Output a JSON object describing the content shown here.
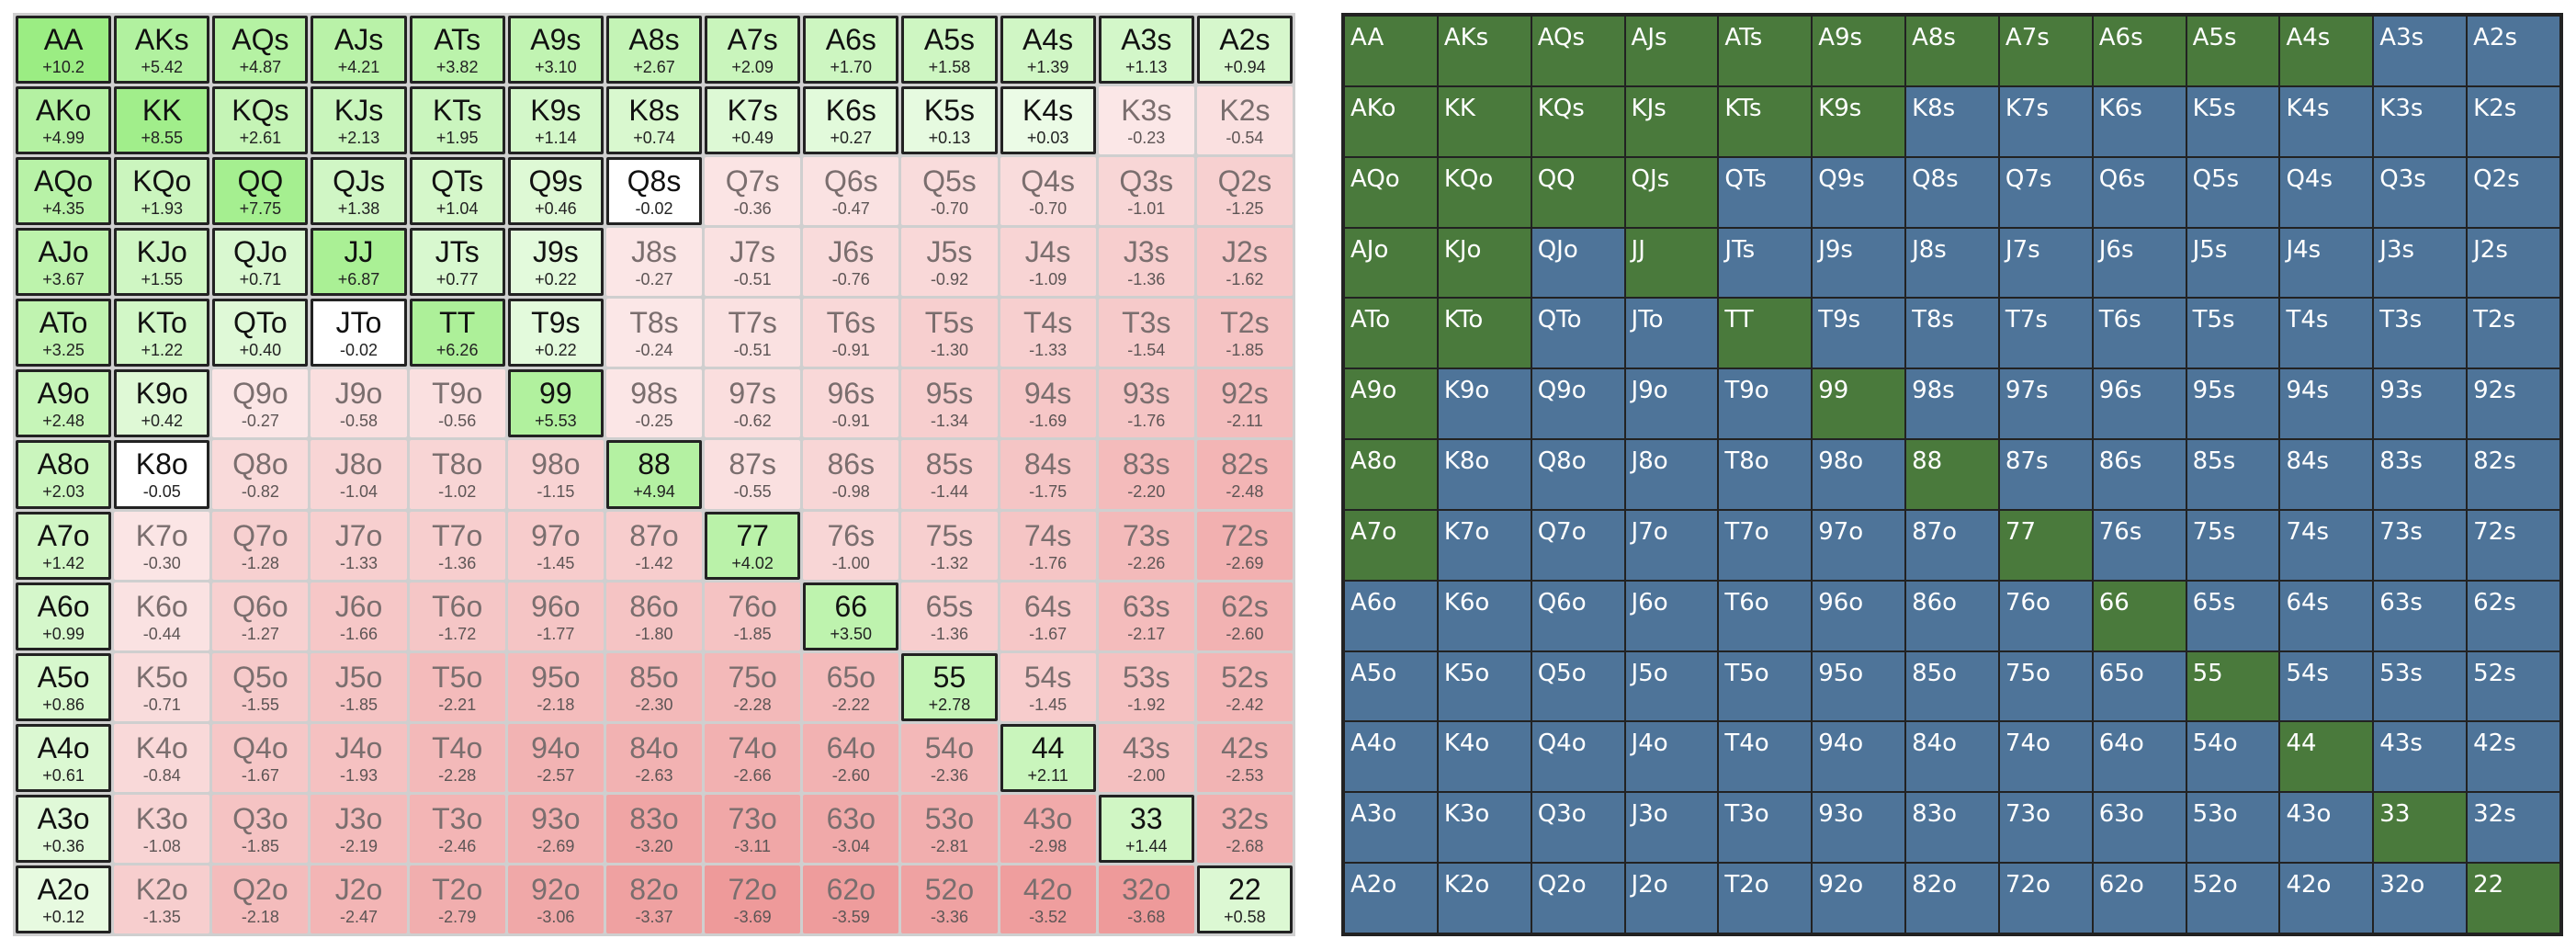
{
  "colors": {
    "positive_base": "#9ff08a",
    "negative_base": "#f2a8a8",
    "raise": "#4a7a3c",
    "fold": "#4e7499",
    "border": "#222222"
  },
  "left_chart": {
    "rows": [
      [
        [
          "AA",
          "+10.2"
        ],
        [
          "AKs",
          "+5.42"
        ],
        [
          "AQs",
          "+4.87"
        ],
        [
          "AJs",
          "+4.21"
        ],
        [
          "ATs",
          "+3.82"
        ],
        [
          "A9s",
          "+3.10"
        ],
        [
          "A8s",
          "+2.67"
        ],
        [
          "A7s",
          "+2.09"
        ],
        [
          "A6s",
          "+1.70"
        ],
        [
          "A5s",
          "+1.58"
        ],
        [
          "A4s",
          "+1.39"
        ],
        [
          "A3s",
          "+1.13"
        ],
        [
          "A2s",
          "+0.94"
        ]
      ],
      [
        [
          "AKo",
          "+4.99"
        ],
        [
          "KK",
          "+8.55"
        ],
        [
          "KQs",
          "+2.61"
        ],
        [
          "KJs",
          "+2.13"
        ],
        [
          "KTs",
          "+1.95"
        ],
        [
          "K9s",
          "+1.14"
        ],
        [
          "K8s",
          "+0.74"
        ],
        [
          "K7s",
          "+0.49"
        ],
        [
          "K6s",
          "+0.27"
        ],
        [
          "K5s",
          "+0.13"
        ],
        [
          "K4s",
          "+0.03"
        ],
        [
          "K3s",
          "-0.23"
        ],
        [
          "K2s",
          "-0.54"
        ]
      ],
      [
        [
          "AQo",
          "+4.35"
        ],
        [
          "KQo",
          "+1.93"
        ],
        [
          "QQ",
          "+7.75"
        ],
        [
          "QJs",
          "+1.38"
        ],
        [
          "QTs",
          "+1.04"
        ],
        [
          "Q9s",
          "+0.46"
        ],
        [
          "Q8s",
          "-0.02"
        ],
        [
          "Q7s",
          "-0.36"
        ],
        [
          "Q6s",
          "-0.47"
        ],
        [
          "Q5s",
          "-0.70"
        ],
        [
          "Q4s",
          "-0.70"
        ],
        [
          "Q3s",
          "-1.01"
        ],
        [
          "Q2s",
          "-1.25"
        ]
      ],
      [
        [
          "AJo",
          "+3.67"
        ],
        [
          "KJo",
          "+1.55"
        ],
        [
          "QJo",
          "+0.71"
        ],
        [
          "JJ",
          "+6.87"
        ],
        [
          "JTs",
          "+0.77"
        ],
        [
          "J9s",
          "+0.22"
        ],
        [
          "J8s",
          "-0.27"
        ],
        [
          "J7s",
          "-0.51"
        ],
        [
          "J6s",
          "-0.76"
        ],
        [
          "J5s",
          "-0.92"
        ],
        [
          "J4s",
          "-1.09"
        ],
        [
          "J3s",
          "-1.36"
        ],
        [
          "J2s",
          "-1.62"
        ]
      ],
      [
        [
          "ATo",
          "+3.25"
        ],
        [
          "KTo",
          "+1.22"
        ],
        [
          "QTo",
          "+0.40"
        ],
        [
          "JTo",
          "-0.02"
        ],
        [
          "TT",
          "+6.26"
        ],
        [
          "T9s",
          "+0.22"
        ],
        [
          "T8s",
          "-0.24"
        ],
        [
          "T7s",
          "-0.51"
        ],
        [
          "T6s",
          "-0.91"
        ],
        [
          "T5s",
          "-1.30"
        ],
        [
          "T4s",
          "-1.33"
        ],
        [
          "T3s",
          "-1.54"
        ],
        [
          "T2s",
          "-1.85"
        ]
      ],
      [
        [
          "A9o",
          "+2.48"
        ],
        [
          "K9o",
          "+0.42"
        ],
        [
          "Q9o",
          "-0.27"
        ],
        [
          "J9o",
          "-0.58"
        ],
        [
          "T9o",
          "-0.56"
        ],
        [
          "99",
          "+5.53"
        ],
        [
          "98s",
          "-0.25"
        ],
        [
          "97s",
          "-0.62"
        ],
        [
          "96s",
          "-0.91"
        ],
        [
          "95s",
          "-1.34"
        ],
        [
          "94s",
          "-1.69"
        ],
        [
          "93s",
          "-1.76"
        ],
        [
          "92s",
          "-2.11"
        ]
      ],
      [
        [
          "A8o",
          "+2.03"
        ],
        [
          "K8o",
          "-0.05"
        ],
        [
          "Q8o",
          "-0.82"
        ],
        [
          "J8o",
          "-1.04"
        ],
        [
          "T8o",
          "-1.02"
        ],
        [
          "98o",
          "-1.15"
        ],
        [
          "88",
          "+4.94"
        ],
        [
          "87s",
          "-0.55"
        ],
        [
          "86s",
          "-0.98"
        ],
        [
          "85s",
          "-1.44"
        ],
        [
          "84s",
          "-1.75"
        ],
        [
          "83s",
          "-2.20"
        ],
        [
          "82s",
          "-2.48"
        ]
      ],
      [
        [
          "A7o",
          "+1.42"
        ],
        [
          "K7o",
          "-0.30"
        ],
        [
          "Q7o",
          "-1.28"
        ],
        [
          "J7o",
          "-1.33"
        ],
        [
          "T7o",
          "-1.36"
        ],
        [
          "97o",
          "-1.45"
        ],
        [
          "87o",
          "-1.42"
        ],
        [
          "77",
          "+4.02"
        ],
        [
          "76s",
          "-1.00"
        ],
        [
          "75s",
          "-1.32"
        ],
        [
          "74s",
          "-1.76"
        ],
        [
          "73s",
          "-2.26"
        ],
        [
          "72s",
          "-2.69"
        ]
      ],
      [
        [
          "A6o",
          "+0.99"
        ],
        [
          "K6o",
          "-0.44"
        ],
        [
          "Q6o",
          "-1.27"
        ],
        [
          "J6o",
          "-1.66"
        ],
        [
          "T6o",
          "-1.72"
        ],
        [
          "96o",
          "-1.77"
        ],
        [
          "86o",
          "-1.80"
        ],
        [
          "76o",
          "-1.85"
        ],
        [
          "66",
          "+3.50"
        ],
        [
          "65s",
          "-1.36"
        ],
        [
          "64s",
          "-1.67"
        ],
        [
          "63s",
          "-2.17"
        ],
        [
          "62s",
          "-2.60"
        ]
      ],
      [
        [
          "A5o",
          "+0.86"
        ],
        [
          "K5o",
          "-0.71"
        ],
        [
          "Q5o",
          "-1.55"
        ],
        [
          "J5o",
          "-1.85"
        ],
        [
          "T5o",
          "-2.21"
        ],
        [
          "95o",
          "-2.18"
        ],
        [
          "85o",
          "-2.30"
        ],
        [
          "75o",
          "-2.28"
        ],
        [
          "65o",
          "-2.22"
        ],
        [
          "55",
          "+2.78"
        ],
        [
          "54s",
          "-1.45"
        ],
        [
          "53s",
          "-1.92"
        ],
        [
          "52s",
          "-2.42"
        ]
      ],
      [
        [
          "A4o",
          "+0.61"
        ],
        [
          "K4o",
          "-0.84"
        ],
        [
          "Q4o",
          "-1.67"
        ],
        [
          "J4o",
          "-1.93"
        ],
        [
          "T4o",
          "-2.28"
        ],
        [
          "94o",
          "-2.57"
        ],
        [
          "84o",
          "-2.63"
        ],
        [
          "74o",
          "-2.66"
        ],
        [
          "64o",
          "-2.60"
        ],
        [
          "54o",
          "-2.36"
        ],
        [
          "44",
          "+2.11"
        ],
        [
          "43s",
          "-2.00"
        ],
        [
          "42s",
          "-2.53"
        ]
      ],
      [
        [
          "A3o",
          "+0.36"
        ],
        [
          "K3o",
          "-1.08"
        ],
        [
          "Q3o",
          "-1.85"
        ],
        [
          "J3o",
          "-2.19"
        ],
        [
          "T3o",
          "-2.46"
        ],
        [
          "93o",
          "-2.69"
        ],
        [
          "83o",
          "-3.20"
        ],
        [
          "73o",
          "-3.11"
        ],
        [
          "63o",
          "-3.04"
        ],
        [
          "53o",
          "-2.81"
        ],
        [
          "43o",
          "-2.98"
        ],
        [
          "33",
          "+1.44"
        ],
        [
          "32s",
          "-2.68"
        ]
      ],
      [
        [
          "A2o",
          "+0.12"
        ],
        [
          "K2o",
          "-1.35"
        ],
        [
          "Q2o",
          "-2.18"
        ],
        [
          "J2o",
          "-2.47"
        ],
        [
          "T2o",
          "-2.79"
        ],
        [
          "92o",
          "-3.06"
        ],
        [
          "82o",
          "-3.37"
        ],
        [
          "72o",
          "-3.69"
        ],
        [
          "62o",
          "-3.59"
        ],
        [
          "52o",
          "-3.36"
        ],
        [
          "42o",
          "-3.52"
        ],
        [
          "32o",
          "-3.68"
        ],
        [
          "22",
          "+0.58"
        ]
      ]
    ]
  },
  "right_chart": {
    "rows": [
      [
        [
          "AA",
          "g"
        ],
        [
          "AKs",
          "g"
        ],
        [
          "AQs",
          "g"
        ],
        [
          "AJs",
          "g"
        ],
        [
          "ATs",
          "g"
        ],
        [
          "A9s",
          "g"
        ],
        [
          "A8s",
          "g"
        ],
        [
          "A7s",
          "g"
        ],
        [
          "A6s",
          "g"
        ],
        [
          "A5s",
          "g"
        ],
        [
          "A4s",
          "g"
        ],
        [
          "A3s",
          "b"
        ],
        [
          "A2s",
          "b"
        ]
      ],
      [
        [
          "AKo",
          "g"
        ],
        [
          "KK",
          "g"
        ],
        [
          "KQs",
          "g"
        ],
        [
          "KJs",
          "g"
        ],
        [
          "KTs",
          "g"
        ],
        [
          "K9s",
          "g"
        ],
        [
          "K8s",
          "b"
        ],
        [
          "K7s",
          "b"
        ],
        [
          "K6s",
          "b"
        ],
        [
          "K5s",
          "b"
        ],
        [
          "K4s",
          "b"
        ],
        [
          "K3s",
          "b"
        ],
        [
          "K2s",
          "b"
        ]
      ],
      [
        [
          "AQo",
          "g"
        ],
        [
          "KQo",
          "g"
        ],
        [
          "QQ",
          "g"
        ],
        [
          "QJs",
          "g"
        ],
        [
          "QTs",
          "b"
        ],
        [
          "Q9s",
          "b"
        ],
        [
          "Q8s",
          "b"
        ],
        [
          "Q7s",
          "b"
        ],
        [
          "Q6s",
          "b"
        ],
        [
          "Q5s",
          "b"
        ],
        [
          "Q4s",
          "b"
        ],
        [
          "Q3s",
          "b"
        ],
        [
          "Q2s",
          "b"
        ]
      ],
      [
        [
          "AJo",
          "g"
        ],
        [
          "KJo",
          "g"
        ],
        [
          "QJo",
          "b"
        ],
        [
          "JJ",
          "g"
        ],
        [
          "JTs",
          "b"
        ],
        [
          "J9s",
          "b"
        ],
        [
          "J8s",
          "b"
        ],
        [
          "J7s",
          "b"
        ],
        [
          "J6s",
          "b"
        ],
        [
          "J5s",
          "b"
        ],
        [
          "J4s",
          "b"
        ],
        [
          "J3s",
          "b"
        ],
        [
          "J2s",
          "b"
        ]
      ],
      [
        [
          "ATo",
          "g"
        ],
        [
          "KTo",
          "g"
        ],
        [
          "QTo",
          "b"
        ],
        [
          "JTo",
          "b"
        ],
        [
          "TT",
          "g"
        ],
        [
          "T9s",
          "b"
        ],
        [
          "T8s",
          "b"
        ],
        [
          "T7s",
          "b"
        ],
        [
          "T6s",
          "b"
        ],
        [
          "T5s",
          "b"
        ],
        [
          "T4s",
          "b"
        ],
        [
          "T3s",
          "b"
        ],
        [
          "T2s",
          "b"
        ]
      ],
      [
        [
          "A9o",
          "g"
        ],
        [
          "K9o",
          "b"
        ],
        [
          "Q9o",
          "b"
        ],
        [
          "J9o",
          "b"
        ],
        [
          "T9o",
          "b"
        ],
        [
          "99",
          "g"
        ],
        [
          "98s",
          "b"
        ],
        [
          "97s",
          "b"
        ],
        [
          "96s",
          "b"
        ],
        [
          "95s",
          "b"
        ],
        [
          "94s",
          "b"
        ],
        [
          "93s",
          "b"
        ],
        [
          "92s",
          "b"
        ]
      ],
      [
        [
          "A8o",
          "g"
        ],
        [
          "K8o",
          "b"
        ],
        [
          "Q8o",
          "b"
        ],
        [
          "J8o",
          "b"
        ],
        [
          "T8o",
          "b"
        ],
        [
          "98o",
          "b"
        ],
        [
          "88",
          "g"
        ],
        [
          "87s",
          "b"
        ],
        [
          "86s",
          "b"
        ],
        [
          "85s",
          "b"
        ],
        [
          "84s",
          "b"
        ],
        [
          "83s",
          "b"
        ],
        [
          "82s",
          "b"
        ]
      ],
      [
        [
          "A7o",
          "g"
        ],
        [
          "K7o",
          "b"
        ],
        [
          "Q7o",
          "b"
        ],
        [
          "J7o",
          "b"
        ],
        [
          "T7o",
          "b"
        ],
        [
          "97o",
          "b"
        ],
        [
          "87o",
          "b"
        ],
        [
          "77",
          "g"
        ],
        [
          "76s",
          "b"
        ],
        [
          "75s",
          "b"
        ],
        [
          "74s",
          "b"
        ],
        [
          "73s",
          "b"
        ],
        [
          "72s",
          "b"
        ]
      ],
      [
        [
          "A6o",
          "b"
        ],
        [
          "K6o",
          "b"
        ],
        [
          "Q6o",
          "b"
        ],
        [
          "J6o",
          "b"
        ],
        [
          "T6o",
          "b"
        ],
        [
          "96o",
          "b"
        ],
        [
          "86o",
          "b"
        ],
        [
          "76o",
          "b"
        ],
        [
          "66",
          "g"
        ],
        [
          "65s",
          "b"
        ],
        [
          "64s",
          "b"
        ],
        [
          "63s",
          "b"
        ],
        [
          "62s",
          "b"
        ]
      ],
      [
        [
          "A5o",
          "b"
        ],
        [
          "K5o",
          "b"
        ],
        [
          "Q5o",
          "b"
        ],
        [
          "J5o",
          "b"
        ],
        [
          "T5o",
          "b"
        ],
        [
          "95o",
          "b"
        ],
        [
          "85o",
          "b"
        ],
        [
          "75o",
          "b"
        ],
        [
          "65o",
          "b"
        ],
        [
          "55",
          "g"
        ],
        [
          "54s",
          "b"
        ],
        [
          "53s",
          "b"
        ],
        [
          "52s",
          "b"
        ]
      ],
      [
        [
          "A4o",
          "b"
        ],
        [
          "K4o",
          "b"
        ],
        [
          "Q4o",
          "b"
        ],
        [
          "J4o",
          "b"
        ],
        [
          "T4o",
          "b"
        ],
        [
          "94o",
          "b"
        ],
        [
          "84o",
          "b"
        ],
        [
          "74o",
          "b"
        ],
        [
          "64o",
          "b"
        ],
        [
          "54o",
          "b"
        ],
        [
          "44",
          "g"
        ],
        [
          "43s",
          "b"
        ],
        [
          "42s",
          "b"
        ]
      ],
      [
        [
          "A3o",
          "b"
        ],
        [
          "K3o",
          "b"
        ],
        [
          "Q3o",
          "b"
        ],
        [
          "J3o",
          "b"
        ],
        [
          "T3o",
          "b"
        ],
        [
          "93o",
          "b"
        ],
        [
          "83o",
          "b"
        ],
        [
          "73o",
          "b"
        ],
        [
          "63o",
          "b"
        ],
        [
          "53o",
          "b"
        ],
        [
          "43o",
          "b"
        ],
        [
          "33",
          "g"
        ],
        [
          "32s",
          "b"
        ]
      ],
      [
        [
          "A2o",
          "b"
        ],
        [
          "K2o",
          "b"
        ],
        [
          "Q2o",
          "b"
        ],
        [
          "J2o",
          "b"
        ],
        [
          "T2o",
          "b"
        ],
        [
          "92o",
          "b"
        ],
        [
          "82o",
          "b"
        ],
        [
          "72o",
          "b"
        ],
        [
          "62o",
          "b"
        ],
        [
          "52o",
          "b"
        ],
        [
          "42o",
          "b"
        ],
        [
          "32o",
          "b"
        ],
        [
          "22",
          "g"
        ]
      ]
    ]
  }
}
